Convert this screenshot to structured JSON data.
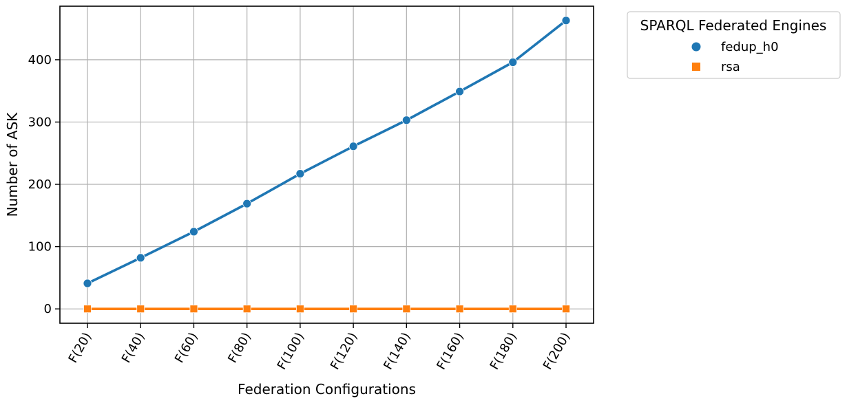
{
  "chart_data": {
    "type": "line",
    "title": "",
    "xlabel": "Federation Configurations",
    "ylabel": "Number of ASK",
    "categories": [
      "F(20)",
      "F(40)",
      "F(60)",
      "F(80)",
      "F(100)",
      "F(120)",
      "F(140)",
      "F(160)",
      "F(180)",
      "F(200)"
    ],
    "series": [
      {
        "name": "fedup_h0",
        "marker": "circle",
        "color": "#1f77b4",
        "values": [
          41,
          82,
          124,
          169,
          217,
          261,
          303,
          349,
          396,
          463
        ]
      },
      {
        "name": "rsa",
        "marker": "square",
        "color": "#ff7f0e",
        "values": [
          0,
          0,
          0,
          0,
          0,
          0,
          0,
          0,
          0,
          0
        ]
      }
    ],
    "ylim": [
      -23,
      486
    ],
    "yticks": [
      0,
      100,
      200,
      300,
      400
    ],
    "grid": true,
    "legend": {
      "title": "SPARQL Federated Engines",
      "placement": "outside-top-right"
    }
  }
}
